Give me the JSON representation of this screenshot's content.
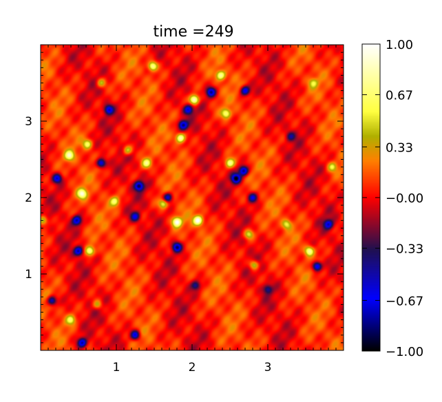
{
  "chart_data": {
    "type": "heatmap",
    "title": "time =249",
    "xlabel": "",
    "ylabel": "",
    "xlim": [
      0,
      4
    ],
    "ylim": [
      0,
      4
    ],
    "x_ticks": [
      1,
      2,
      3
    ],
    "y_ticks": [
      1,
      2,
      3
    ],
    "colorbar": {
      "range": [
        -1.0,
        1.0
      ],
      "tick_values": [
        1.0,
        0.67,
        0.33,
        0.0,
        -0.33,
        -0.67,
        -1.0
      ],
      "tick_labels": [
        "1.00",
        "0.67",
        "0.33",
        "−0.00",
        "−0.33",
        "−0.67",
        "−1.00"
      ],
      "colors": [
        "#000000",
        "#0000ff",
        "#201050",
        "#ff0000",
        "#ff8000",
        "#b0b000",
        "#ffff40",
        "#ffffff"
      ]
    },
    "background_level": 0.05,
    "features": [
      {
        "x": 1.48,
        "y": 3.72,
        "v": 0.75
      },
      {
        "x": 2.03,
        "y": 3.28,
        "v": 0.95
      },
      {
        "x": 2.38,
        "y": 3.6,
        "v": 0.7
      },
      {
        "x": 2.45,
        "y": 3.1,
        "v": 0.6
      },
      {
        "x": 1.85,
        "y": 2.78,
        "v": 0.85
      },
      {
        "x": 1.15,
        "y": 2.62,
        "v": 0.55
      },
      {
        "x": 0.62,
        "y": 2.7,
        "v": 0.55
      },
      {
        "x": 1.4,
        "y": 2.45,
        "v": 0.6
      },
      {
        "x": 0.38,
        "y": 2.55,
        "v": 0.65
      },
      {
        "x": 2.5,
        "y": 2.45,
        "v": 0.7
      },
      {
        "x": 0.55,
        "y": 2.05,
        "v": 0.75
      },
      {
        "x": 0.98,
        "y": 1.95,
        "v": 0.55
      },
      {
        "x": 1.8,
        "y": 1.68,
        "v": 0.9
      },
      {
        "x": 2.08,
        "y": 1.7,
        "v": 0.95
      },
      {
        "x": 1.62,
        "y": 1.92,
        "v": 0.55
      },
      {
        "x": 0.03,
        "y": 1.7,
        "v": 0.6
      },
      {
        "x": 0.65,
        "y": 1.3,
        "v": 0.75
      },
      {
        "x": 2.75,
        "y": 1.52,
        "v": 0.5
      },
      {
        "x": 2.82,
        "y": 1.12,
        "v": 0.55
      },
      {
        "x": 3.55,
        "y": 1.3,
        "v": 0.7
      },
      {
        "x": 3.25,
        "y": 1.65,
        "v": 0.45
      },
      {
        "x": 3.85,
        "y": 2.4,
        "v": 0.45
      },
      {
        "x": 3.6,
        "y": 3.5,
        "v": 0.4
      },
      {
        "x": 0.4,
        "y": 0.4,
        "v": 0.5
      },
      {
        "x": 0.75,
        "y": 0.6,
        "v": 0.4
      },
      {
        "x": 0.8,
        "y": 3.5,
        "v": 0.45
      },
      {
        "x": 2.7,
        "y": 3.4,
        "v": -0.8
      },
      {
        "x": 2.25,
        "y": 3.38,
        "v": -0.8
      },
      {
        "x": 1.95,
        "y": 3.15,
        "v": -0.7
      },
      {
        "x": 1.88,
        "y": 2.95,
        "v": -0.85
      },
      {
        "x": 0.9,
        "y": 3.15,
        "v": -0.7
      },
      {
        "x": 2.68,
        "y": 2.35,
        "v": -0.9
      },
      {
        "x": 2.58,
        "y": 2.25,
        "v": -0.95
      },
      {
        "x": 1.3,
        "y": 2.15,
        "v": -0.9
      },
      {
        "x": 0.8,
        "y": 2.45,
        "v": -0.8
      },
      {
        "x": 0.22,
        "y": 2.25,
        "v": -0.75
      },
      {
        "x": 1.68,
        "y": 2.0,
        "v": -0.7
      },
      {
        "x": 2.8,
        "y": 2.0,
        "v": -0.6
      },
      {
        "x": 0.48,
        "y": 1.7,
        "v": -0.8
      },
      {
        "x": 1.25,
        "y": 1.75,
        "v": -0.6
      },
      {
        "x": 1.8,
        "y": 1.35,
        "v": -0.85
      },
      {
        "x": 0.5,
        "y": 1.3,
        "v": -0.85
      },
      {
        "x": 3.65,
        "y": 1.1,
        "v": -0.9
      },
      {
        "x": 3.8,
        "y": 1.65,
        "v": -0.7
      },
      {
        "x": 0.15,
        "y": 0.65,
        "v": -0.75
      },
      {
        "x": 1.25,
        "y": 0.2,
        "v": -0.8
      },
      {
        "x": 0.55,
        "y": 0.1,
        "v": -0.8
      },
      {
        "x": 2.05,
        "y": 0.85,
        "v": -0.5
      },
      {
        "x": 3.0,
        "y": 0.8,
        "v": -0.45
      },
      {
        "x": 3.3,
        "y": 2.8,
        "v": -0.4
      }
    ]
  }
}
